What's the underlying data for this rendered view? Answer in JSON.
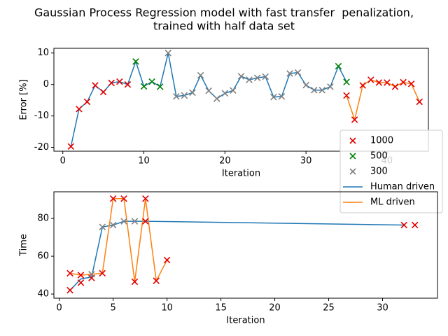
{
  "chart_data": [
    {
      "type": "line",
      "title": [
        "Gaussian Process Regression model with fast transfer  penalization,",
        "trained with half data set"
      ],
      "xlabel": "Iteration",
      "ylabel": "Error [%]",
      "xlim": [
        -1.1,
        45.1
      ],
      "ylim": [
        -21.2,
        11.5
      ],
      "xticks": [
        0,
        10,
        20,
        30,
        40
      ],
      "yticks": [
        -20,
        -10,
        0,
        10
      ],
      "legend": true,
      "series": [
        {
          "name": "1000",
          "mode": "markers",
          "color": "#e00000",
          "x": [
            1,
            2,
            3,
            4,
            5,
            6,
            7,
            8,
            35,
            36,
            37,
            38,
            39,
            40,
            41,
            42,
            43,
            44
          ],
          "values": [
            -19.7,
            -7.8,
            -5.5,
            -0.3,
            -2.4,
            0.5,
            0.9,
            0,
            -3.5,
            -11.2,
            -0.3,
            1.5,
            0.6,
            0.6,
            -0.7,
            0.7,
            0.2,
            -5.5
          ]
        },
        {
          "name": "500",
          "mode": "markers",
          "color": "#008000",
          "x": [
            9,
            10,
            11,
            12,
            34,
            35
          ],
          "values": [
            7.3,
            -0.6,
            0.9,
            -0.7,
            5.8,
            0.8
          ]
        },
        {
          "name": "300",
          "mode": "markers",
          "color": "#808080",
          "x": [
            13,
            14,
            15,
            16,
            17,
            18,
            19,
            20,
            21,
            22,
            23,
            24,
            25,
            26,
            27,
            28,
            29,
            30,
            31,
            32,
            33
          ],
          "values": [
            10,
            -3.8,
            -3.5,
            -2.6,
            2.9,
            -2,
            -4.5,
            -2.8,
            -1.9,
            2.6,
            1.5,
            2.1,
            2.5,
            -4,
            -3.8,
            3.5,
            3.8,
            -0.2,
            -1.8,
            -1.8,
            -0.7
          ]
        },
        {
          "name": "Human driven",
          "mode": "line",
          "color": "#1f77b4",
          "x": [
            1,
            2,
            3,
            4,
            5,
            6,
            7,
            8,
            9,
            10,
            11,
            12,
            13,
            14,
            15,
            16,
            17,
            18,
            19,
            20,
            21,
            22,
            23,
            24,
            25,
            26,
            27,
            28,
            29,
            30,
            31,
            32,
            33,
            34,
            35
          ],
          "values": [
            -19.7,
            -7.8,
            -5.5,
            -0.3,
            -2.4,
            0.5,
            0.9,
            0,
            7.3,
            -0.6,
            0.9,
            -0.7,
            10,
            -3.8,
            -3.5,
            -2.6,
            2.9,
            -2,
            -4.5,
            -2.8,
            -1.9,
            2.6,
            1.5,
            2.1,
            2.5,
            -4,
            -3.8,
            3.5,
            3.8,
            -0.2,
            -1.8,
            -1.8,
            -0.7,
            5.8,
            0.8
          ]
        },
        {
          "name": "ML driven",
          "mode": "line",
          "color": "#ff7f0e",
          "x": [
            35,
            36,
            37,
            38,
            39,
            40,
            41,
            42,
            43,
            44
          ],
          "values": [
            -3.5,
            -11.2,
            -0.3,
            1.5,
            0.6,
            0.6,
            -0.7,
            0.7,
            0.2,
            -5.5
          ]
        }
      ]
    },
    {
      "type": "line",
      "xlabel": "Iteration",
      "ylabel": "Time",
      "xlim": [
        -0.5,
        35.1
      ],
      "ylim": [
        37.8,
        94.1
      ],
      "xticks": [
        0,
        5,
        10,
        15,
        20,
        25,
        30
      ],
      "yticks": [
        40,
        60,
        80
      ],
      "series": [
        {
          "mode": "line",
          "color": "#1f77b4",
          "x": [
            1,
            2,
            3,
            4,
            5,
            6,
            7,
            8,
            32
          ],
          "values": [
            42,
            48,
            49,
            75.5,
            76.5,
            78.5,
            78.5,
            78.5,
            76.5
          ]
        },
        {
          "mode": "line",
          "color": "#ff7f0e",
          "x": [
            1,
            2,
            3,
            4,
            5,
            6,
            7,
            8,
            9,
            10
          ],
          "values": [
            51,
            50,
            50.5,
            51,
            90.5,
            90.5,
            46.5,
            90.5,
            47,
            58
          ]
        },
        {
          "mode": "markers",
          "color": "#e00000",
          "x": [
            1,
            1,
            2,
            2,
            3,
            4,
            5,
            6,
            7,
            8,
            8,
            9,
            10,
            32,
            33
          ],
          "values": [
            42,
            51,
            46,
            50,
            48.5,
            51,
            90.5,
            90.5,
            46.5,
            90.5,
            78.5,
            47,
            58,
            76.5,
            76.5
          ]
        },
        {
          "mode": "markers",
          "color": "#808080",
          "x": [
            3,
            4,
            5,
            6,
            7
          ],
          "values": [
            50.5,
            75.5,
            76.5,
            78.5,
            78.5
          ]
        }
      ]
    }
  ]
}
